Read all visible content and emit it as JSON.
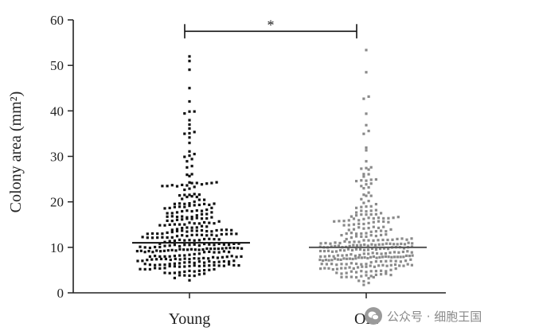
{
  "chart_data": {
    "type": "scatter",
    "subtype": "dot-plot-with-median",
    "title": "",
    "xlabel": "",
    "ylabel": "Colony area (mm²)",
    "ylim": [
      0,
      60
    ],
    "yticks": [
      "0",
      "10",
      "20",
      "30",
      "40",
      "50",
      "60"
    ],
    "categories": [
      "Young",
      "Old"
    ],
    "grid": false,
    "series": [
      {
        "category": "Young",
        "color": "#111111",
        "median": 11,
        "point_count": 320,
        "y_min": 1.5,
        "y_max": 52,
        "top_values": [
          52,
          51,
          49,
          45,
          42,
          40,
          40,
          39.5,
          38,
          37,
          36,
          35.5,
          35,
          35,
          34,
          33,
          31,
          30.5,
          30,
          30,
          29.5,
          29,
          28
        ]
      },
      {
        "category": "Old",
        "color": "#8a8a8a",
        "median": 10,
        "point_count": 300,
        "y_min": 1.5,
        "y_max": 53.5,
        "top_values": [
          53.5,
          48.5,
          43,
          42.5,
          39.5,
          37,
          35.5,
          35,
          32,
          31.5,
          29,
          27,
          26,
          25,
          24
        ]
      }
    ],
    "annotations": [
      {
        "type": "significance-bracket",
        "between": [
          "Young",
          "Old"
        ],
        "y": 57.5,
        "label": "*"
      }
    ]
  },
  "watermark": {
    "text": "公众号 · 细胞王国",
    "icon": "wechat-icon"
  }
}
